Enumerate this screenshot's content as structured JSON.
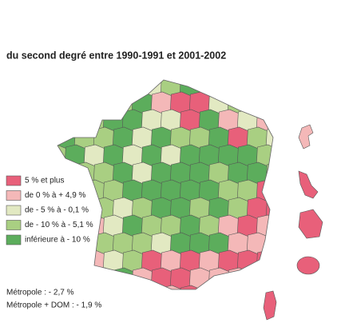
{
  "title": "du second degré entre 1990-1991 et 2001-2002",
  "legend": [
    {
      "label": "5 % et plus",
      "color": "#e8607a"
    },
    {
      "label": "de 0 % à + 4,9 %",
      "color": "#f4b8b8"
    },
    {
      "label": "de - 5 % à - 0,1 %",
      "color": "#e2e9c2"
    },
    {
      "label": "de - 10 % à - 5,1 %",
      "color": "#a9cf82"
    },
    {
      "label": "inférieure à - 10 %",
      "color": "#5cad5c"
    }
  ],
  "notes": [
    "Métropole : - 2,7 %",
    "Métropole + DOM : - 1,9 %"
  ]
}
